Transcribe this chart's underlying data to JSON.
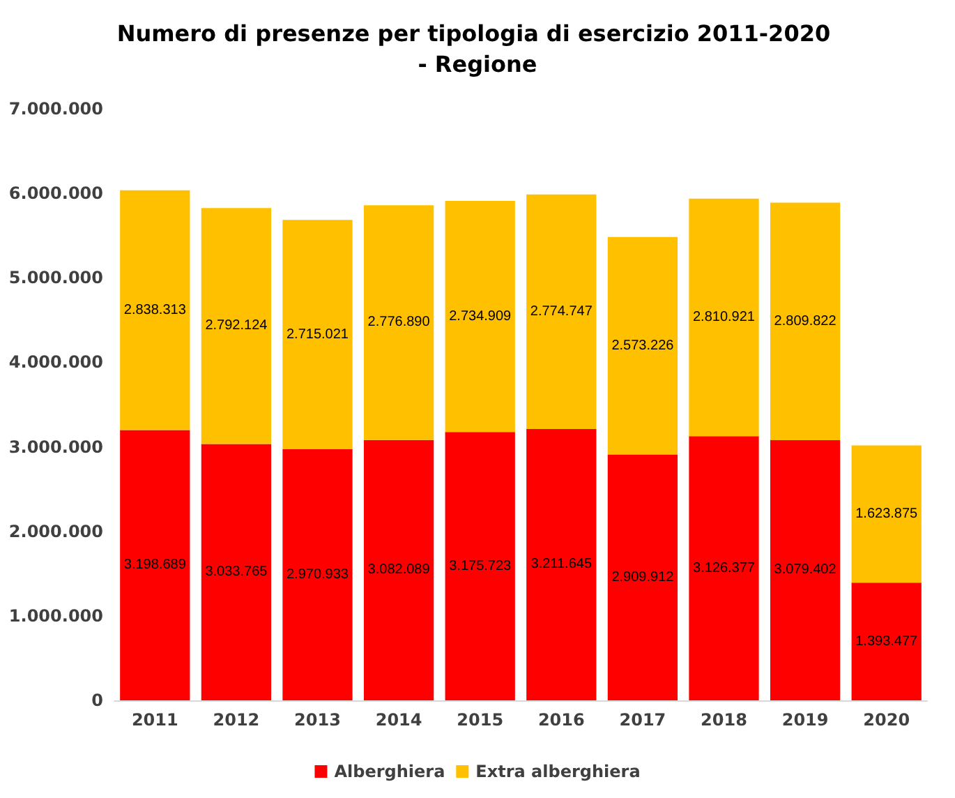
{
  "chart_data": {
    "type": "bar",
    "stacked": true,
    "title": "Numero di presenze per tipologia di esercizio 2011-2020 - Regione",
    "categories": [
      "2011",
      "2012",
      "2013",
      "2014",
      "2015",
      "2016",
      "2017",
      "2018",
      "2019",
      "2020"
    ],
    "series": [
      {
        "name": "Alberghiera",
        "color": "#ff0000",
        "values": [
          3198689,
          3033765,
          2970933,
          3082089,
          3175723,
          3211645,
          2909912,
          3126377,
          3079402,
          1393477
        ],
        "value_labels": [
          "3.198.689",
          "3.033.765",
          "2.970.933",
          "3.082.089",
          "3.175.723",
          "3.211.645",
          "2.909.912",
          "3.126.377",
          "3.079.402",
          "1.393.477"
        ]
      },
      {
        "name": "Extra alberghiera",
        "color": "#ffc000",
        "values": [
          2838313,
          2792124,
          2715021,
          2776890,
          2734909,
          2774747,
          2573226,
          2810921,
          2809822,
          1623875
        ],
        "value_labels": [
          "2.838.313",
          "2.792.124",
          "2.715.021",
          "2.776.890",
          "2.734.909",
          "2.774.747",
          "2.573.226",
          "2.810.921",
          "2.809.822",
          "1.623.875"
        ]
      }
    ],
    "ylim": [
      0,
      7000000
    ],
    "yticks": [
      {
        "value": 0,
        "label": "0"
      },
      {
        "value": 1000000,
        "label": "1.000.000"
      },
      {
        "value": 2000000,
        "label": "2.000.000"
      },
      {
        "value": 3000000,
        "label": "3.000.000"
      },
      {
        "value": 4000000,
        "label": "4.000.000"
      },
      {
        "value": 5000000,
        "label": "5.000.000"
      },
      {
        "value": 6000000,
        "label": "6.000.000"
      },
      {
        "value": 7000000,
        "label": "7.000.000"
      }
    ],
    "grid": false,
    "legend": "bottom"
  }
}
